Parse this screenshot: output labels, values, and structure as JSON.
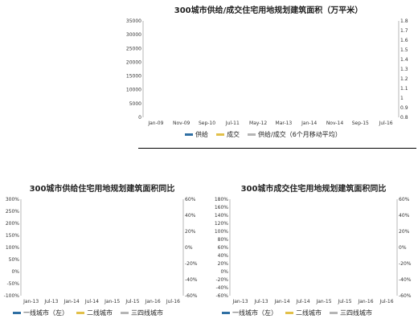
{
  "chart_data": [
    {
      "type": "bar",
      "title": "300城市供给/成交住宅用地规划建筑面积（万平米）",
      "x_ticks": [
        "Jan-09",
        "Nov-09",
        "Sep-10",
        "Jul-11",
        "May-12",
        "Mar-13",
        "Jan-14",
        "Nov-14",
        "Sep-15",
        "Jul-16"
      ],
      "y_left": {
        "range": [
          0,
          35000
        ],
        "ticks": [
          "0",
          "5000",
          "10000",
          "15000",
          "20000",
          "25000",
          "30000",
          "35000"
        ]
      },
      "y_right": {
        "range": [
          0.8,
          1.8
        ],
        "ticks": [
          "0.8",
          "0.9",
          "1",
          "1.1",
          "1.2",
          "1.3",
          "1.4",
          "1.5",
          "1.6",
          "1.7",
          "1.8"
        ]
      },
      "series": [
        {
          "name": "供给",
          "type": "bar",
          "axis": "left",
          "color": "#2f6fa3",
          "values": []
        },
        {
          "name": "成交",
          "type": "bar",
          "axis": "left",
          "color": "#e2c04a",
          "values": []
        },
        {
          "name": "供给/成交（6个月移动平均）",
          "type": "line",
          "axis": "right",
          "color": "#b5b5b5",
          "values": []
        }
      ]
    },
    {
      "type": "line",
      "title": "300城市供给住宅用地规划建筑面积同比",
      "x_ticks": [
        "Jan-13",
        "Jul-13",
        "Jan-14",
        "Jul-14",
        "Jan-15",
        "Jul-15",
        "Jan-16",
        "Jul-16"
      ],
      "y_left": {
        "range": [
          -100,
          300
        ],
        "ticks": [
          "-100%",
          "-50%",
          "0%",
          "50%",
          "100%",
          "150%",
          "200%",
          "250%",
          "300%"
        ]
      },
      "y_right": {
        "range": [
          -60,
          60
        ],
        "ticks": [
          "-60%",
          "-40%",
          "-20%",
          "0%",
          "20%",
          "40%",
          "60%"
        ]
      },
      "series": [
        {
          "name": "一线城市（左）",
          "axis": "left",
          "color": "#2f6fa3",
          "values": []
        },
        {
          "name": "二线城市",
          "axis": "right",
          "color": "#e2c04a",
          "values": []
        },
        {
          "name": "三四线城市",
          "axis": "right",
          "color": "#b5b5b5",
          "values": []
        }
      ]
    },
    {
      "type": "line",
      "title": "300城市成交住宅用地规划建筑面积同比",
      "x_ticks": [
        "Jan-13",
        "Jul-13",
        "Jan-14",
        "Jul-14",
        "Jan-15",
        "Jul-15",
        "Jan-16",
        "Jul-16"
      ],
      "y_left": {
        "range": [
          -60,
          180
        ],
        "ticks": [
          "-60%",
          "-40%",
          "-20%",
          "0%",
          "20%",
          "40%",
          "60%",
          "80%",
          "100%",
          "120%",
          "140%",
          "160%",
          "180%"
        ]
      },
      "y_right": {
        "range": [
          -60,
          60
        ],
        "ticks": [
          "-60%",
          "-40%",
          "-20%",
          "0%",
          "20%",
          "40%",
          "60%"
        ]
      },
      "series": [
        {
          "name": "一线城市（左）",
          "axis": "left",
          "color": "#2f6fa3",
          "values": []
        },
        {
          "name": "二线城市",
          "axis": "right",
          "color": "#e2c04a",
          "values": []
        },
        {
          "name": "三四线城市",
          "axis": "right",
          "color": "#b5b5b5",
          "values": []
        }
      ]
    }
  ]
}
